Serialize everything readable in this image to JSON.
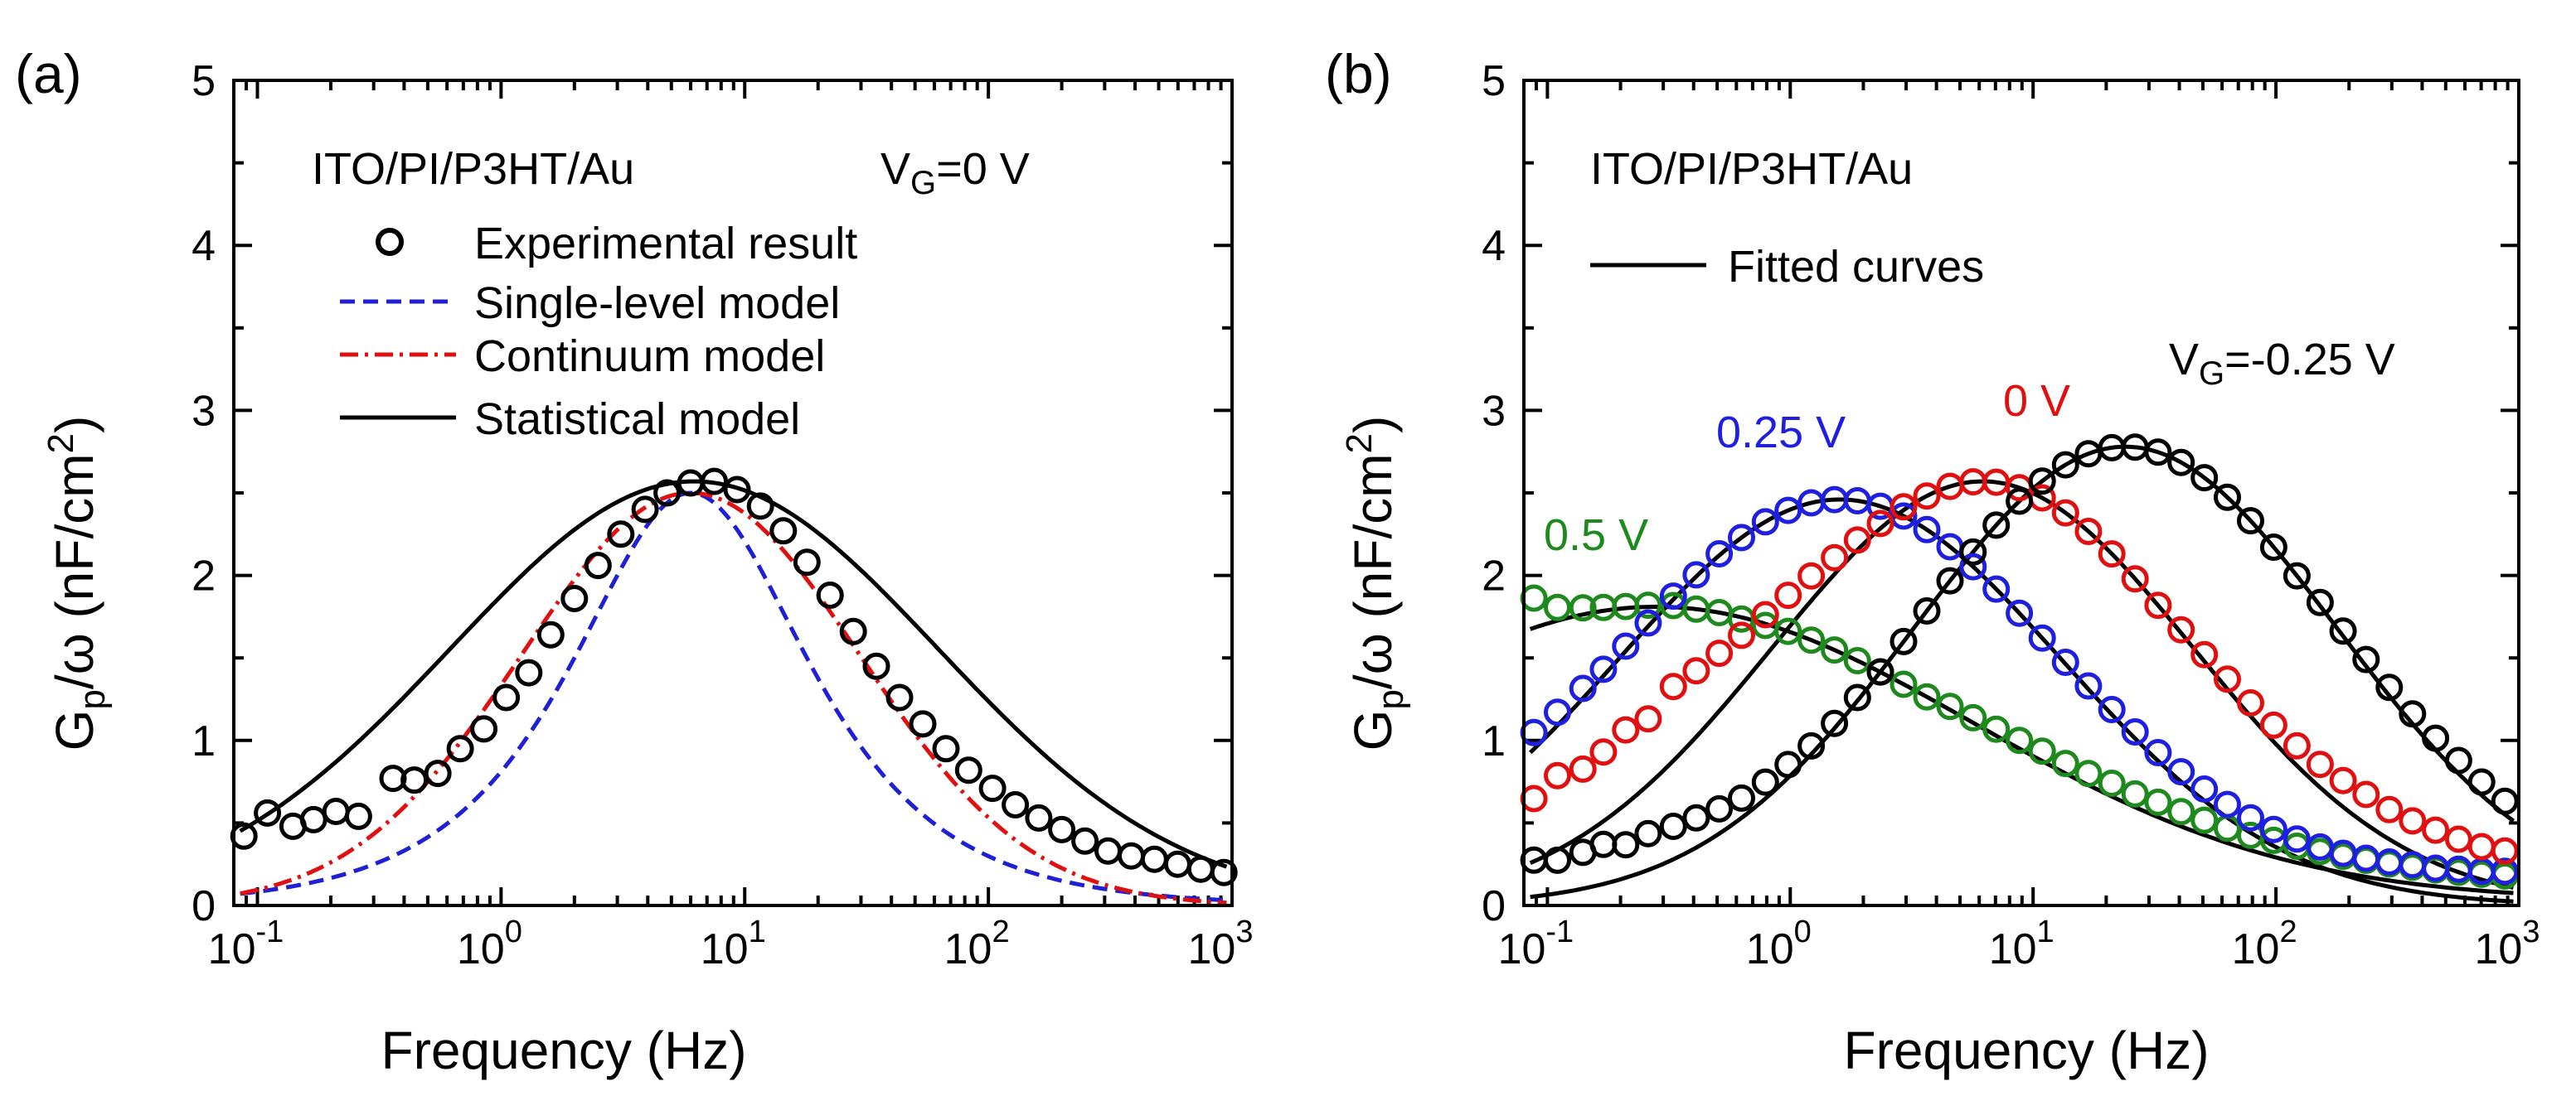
{
  "chart_data": [
    {
      "id": "a",
      "type": "scatter",
      "panel_label": "(a)",
      "xlabel": "Frequency (Hz)",
      "ylabel": {
        "main": "G",
        "sub": "p",
        "rest": "/ω (nF/cm",
        "sup": "2",
        "end": ")"
      },
      "xscale": "log",
      "xlim": [
        0.08,
        1000
      ],
      "ylim": [
        0,
        5
      ],
      "xticks": [
        {
          "base": "10",
          "exp": "-1",
          "value": 0.1
        },
        {
          "base": "10",
          "exp": "0",
          "value": 1
        },
        {
          "base": "10",
          "exp": "1",
          "value": 10
        },
        {
          "base": "10",
          "exp": "2",
          "value": 100
        },
        {
          "base": "10",
          "exp": "3",
          "value": 1000
        }
      ],
      "yticks": [
        "0",
        "1",
        "2",
        "3",
        "4",
        "5"
      ],
      "annotations": [
        {
          "text": "ITO/PI/P3HT/Au"
        },
        {
          "main": "V",
          "sub": "G",
          "rest": "=0 V"
        }
      ],
      "legend": [
        {
          "label": "Experimental result",
          "style": "circle",
          "color": "#000000"
        },
        {
          "label": "Single-level model",
          "style": "dash",
          "color": "#1f1fd6"
        },
        {
          "label": "Continuum model",
          "style": "dashdot",
          "color": "#e01010"
        },
        {
          "label": "Statistical model",
          "style": "solid",
          "color": "#000000"
        }
      ],
      "series": [
        {
          "name": "Experimental result",
          "kind": "markers",
          "color": "#000000",
          "x": [
            0.088,
            0.11,
            0.14,
            0.17,
            0.21,
            0.26,
            0.36,
            0.44,
            0.55,
            0.68,
            0.85,
            1.05,
            1.3,
            1.6,
            2.0,
            2.5,
            3.1,
            3.9,
            4.8,
            6.0,
            7.5,
            9.3,
            11.6,
            14.4,
            18.0,
            22.4,
            27.9,
            34.7,
            43.2,
            53.8,
            67,
            83,
            104,
            129,
            161,
            200,
            249,
            310,
            386,
            480,
            598,
            744,
            926
          ],
          "y": [
            0.42,
            0.56,
            0.48,
            0.52,
            0.57,
            0.54,
            0.77,
            0.76,
            0.8,
            0.95,
            1.07,
            1.26,
            1.41,
            1.64,
            1.86,
            2.06,
            2.25,
            2.4,
            2.5,
            2.56,
            2.57,
            2.52,
            2.42,
            2.27,
            2.08,
            1.88,
            1.66,
            1.45,
            1.26,
            1.1,
            0.95,
            0.82,
            0.71,
            0.61,
            0.53,
            0.46,
            0.39,
            0.33,
            0.3,
            0.28,
            0.25,
            0.22,
            0.2
          ]
        },
        {
          "name": "Single-level model",
          "kind": "line",
          "style": "dash",
          "color": "#1f1fd6",
          "model": "single",
          "peak": 2.5,
          "f0": 6.0
        },
        {
          "name": "Continuum model",
          "kind": "line",
          "style": "dashdot",
          "color": "#e01010",
          "model": "continuum",
          "peak": 2.5,
          "f0": 6.0,
          "sigma": 1.6
        },
        {
          "name": "Statistical model",
          "kind": "line",
          "style": "solid",
          "color": "#000000",
          "model": "continuum",
          "peak": 2.57,
          "f0": 6.2,
          "sigma": 2.3
        }
      ]
    },
    {
      "id": "b",
      "type": "scatter",
      "panel_label": "(b)",
      "xlabel": "Frequency (Hz)",
      "ylabel": {
        "main": "G",
        "sub": "p",
        "rest": "/ω (nF/cm",
        "sup": "2",
        "end": ")"
      },
      "xscale": "log",
      "xlim": [
        0.08,
        1000
      ],
      "ylim": [
        0,
        5
      ],
      "xticks": [
        {
          "base": "10",
          "exp": "-1",
          "value": 0.1
        },
        {
          "base": "10",
          "exp": "0",
          "value": 1
        },
        {
          "base": "10",
          "exp": "1",
          "value": 10
        },
        {
          "base": "10",
          "exp": "2",
          "value": 100
        },
        {
          "base": "10",
          "exp": "3",
          "value": 1000
        }
      ],
      "yticks": [
        "0",
        "1",
        "2",
        "3",
        "4",
        "5"
      ],
      "annotations": [
        {
          "text": "ITO/PI/P3HT/Au"
        }
      ],
      "series_labels": [
        {
          "text": "0.5 V",
          "color": "#1e8a1e"
        },
        {
          "text": "0.25 V",
          "color": "#1f1fe0"
        },
        {
          "text": "0 V",
          "color": "#e01010"
        },
        {
          "main": "V",
          "sub": "G",
          "rest": "=-0.25 V",
          "color": "#000000"
        }
      ],
      "legend": [
        {
          "label": "Fitted curves",
          "style": "solid",
          "color": "#000000"
        }
      ],
      "series": [
        {
          "name": "0.5 V",
          "color": "#1e8a1e",
          "peak": 1.78,
          "f0": 0.28,
          "sigma": 3.0,
          "offset": 0.03,
          "dev": [
            0.18,
            0.08,
            0.04,
            0.02,
            0.01,
            0.01,
            0.01,
            0.0,
            0.0,
            -0.01,
            -0.01,
            0.0,
            0.0,
            0.0,
            0.0,
            0.0,
            0.0,
            0.0,
            0.02,
            0.03,
            0.04,
            0.05,
            0.06,
            0.06,
            0.07,
            0.08,
            0.08,
            0.09,
            0.09,
            0.09,
            0.09,
            0.09,
            0.1,
            0.1,
            0.1,
            0.1,
            0.1,
            0.1,
            0.1,
            0.1,
            0.1,
            0.1,
            0.1
          ]
        },
        {
          "name": "0.25 V",
          "color": "#1f1fe0",
          "peak": 2.46,
          "f0": 1.6,
          "sigma": 2.1,
          "offset": 0.0,
          "dev": [
            0.1,
            0.08,
            0.06,
            0.04,
            0.03,
            0.02,
            0.02,
            0.01,
            0.01,
            0.0,
            0.0,
            0.0,
            0.0,
            0.0,
            0.0,
            0.0,
            0.0,
            0.0,
            0.0,
            0.0,
            0.0,
            0.0,
            0.0,
            0.01,
            0.02,
            0.03,
            0.04,
            0.05,
            0.06,
            0.07,
            0.08,
            0.09,
            0.1,
            0.11,
            0.12,
            0.13,
            0.14,
            0.15,
            0.16,
            0.16,
            0.17,
            0.17,
            0.18
          ]
        },
        {
          "name": "0 V",
          "color": "#e01010",
          "peak": 2.57,
          "f0": 6.2,
          "sigma": 2.0,
          "offset": 0.0,
          "dev": [
            0.38,
            0.45,
            0.4,
            0.42,
            0.45,
            0.4,
            0.45,
            0.4,
            0.35,
            0.3,
            0.25,
            0.2,
            0.15,
            0.1,
            0.06,
            0.03,
            0.02,
            0.0,
            0.0,
            0.0,
            0.0,
            0.0,
            0.0,
            0.0,
            0.0,
            0.0,
            0.0,
            0.0,
            0.02,
            0.04,
            0.06,
            0.08,
            0.1,
            0.12,
            0.14,
            0.16,
            0.18,
            0.18,
            0.19,
            0.2,
            0.2,
            0.2,
            0.21
          ]
        },
        {
          "name": "-0.25 V",
          "color": "#000000",
          "peak": 2.78,
          "f0": 24.0,
          "sigma": 2.0,
          "offset": 0.0,
          "dev": [
            0.22,
            0.2,
            0.22,
            0.24,
            0.2,
            0.22,
            0.2,
            0.18,
            0.15,
            0.12,
            0.1,
            0.08,
            0.05,
            0.03,
            0.02,
            0.0,
            0.0,
            0.0,
            0.0,
            0.0,
            0.0,
            0.0,
            0.0,
            0.0,
            0.0,
            0.0,
            0.0,
            0.0,
            0.0,
            0.0,
            0.0,
            0.0,
            0.0,
            0.0,
            0.02,
            0.03,
            0.04,
            0.05,
            0.06,
            0.07,
            0.08,
            0.08,
            0.08
          ]
        }
      ],
      "marker_x": [
        0.088,
        0.11,
        0.14,
        0.17,
        0.21,
        0.26,
        0.33,
        0.41,
        0.51,
        0.63,
        0.79,
        0.98,
        1.22,
        1.52,
        1.89,
        2.35,
        2.93,
        3.65,
        4.55,
        5.66,
        7.05,
        8.78,
        10.9,
        13.6,
        16.9,
        21.1,
        26.3,
        32.7,
        40.7,
        50.7,
        63.1,
        78.6,
        97.9,
        122,
        152,
        189,
        235,
        293,
        365,
        454,
        565,
        703,
        876
      ]
    }
  ]
}
